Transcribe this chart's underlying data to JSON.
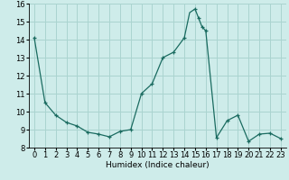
{
  "xlabel": "Humidex (Indice chaleur)",
  "background_color": "#ceecea",
  "grid_color": "#aad4d0",
  "line_color": "#1a6b60",
  "marker_color": "#1a6b60",
  "x": [
    0,
    1,
    2,
    3,
    4,
    5,
    6,
    7,
    8,
    9,
    10,
    11,
    12,
    13,
    14,
    14.5,
    15,
    15.33,
    15.66,
    16,
    17,
    18,
    19,
    20,
    21,
    22,
    23
  ],
  "y": [
    14.1,
    10.5,
    9.8,
    9.4,
    9.2,
    8.85,
    8.75,
    8.6,
    8.9,
    9.0,
    11.0,
    11.55,
    13.0,
    13.3,
    14.1,
    15.5,
    15.7,
    15.2,
    14.7,
    14.5,
    8.55,
    9.5,
    9.8,
    8.35,
    8.75,
    8.8,
    8.5
  ],
  "marker_x": [
    0,
    1,
    2,
    3,
    4,
    5,
    6,
    7,
    8,
    9,
    10,
    11,
    12,
    13,
    14,
    15,
    15.33,
    15.66,
    16,
    17,
    18,
    19,
    20,
    21,
    22,
    23
  ],
  "marker_y": [
    14.1,
    10.5,
    9.8,
    9.4,
    9.2,
    8.85,
    8.75,
    8.6,
    8.9,
    9.0,
    11.0,
    11.55,
    13.0,
    13.3,
    14.1,
    15.7,
    15.2,
    14.7,
    14.5,
    8.55,
    9.5,
    9.8,
    8.35,
    8.75,
    8.8,
    8.5
  ],
  "xlim": [
    -0.5,
    23.5
  ],
  "ylim": [
    8.0,
    16.0
  ],
  "yticks": [
    8,
    9,
    10,
    11,
    12,
    13,
    14,
    15,
    16
  ],
  "xticks": [
    0,
    1,
    2,
    3,
    4,
    5,
    6,
    7,
    8,
    9,
    10,
    11,
    12,
    13,
    14,
    15,
    16,
    17,
    18,
    19,
    20,
    21,
    22,
    23
  ],
  "xlabel_fontsize": 6.5,
  "tick_fontsize": 6,
  "fig_bg": "#ceecea"
}
